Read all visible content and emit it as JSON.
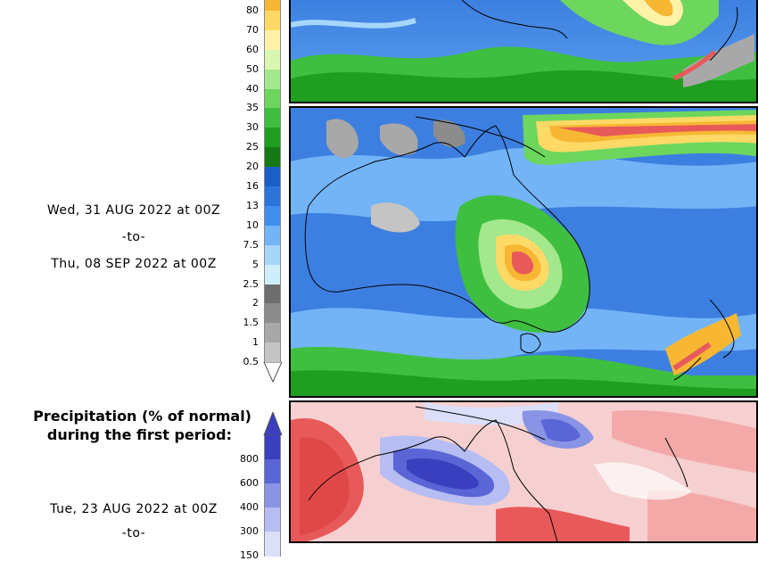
{
  "amount_scale": {
    "labels": [
      "80",
      "70",
      "60",
      "50",
      "40",
      "35",
      "30",
      "25",
      "20",
      "16",
      "13",
      "10",
      "7.5",
      "5",
      "2.5",
      "2",
      "1.5",
      "1",
      "0.5"
    ],
    "colors": [
      "#f7b733",
      "#ffd966",
      "#fff2a8",
      "#d9f7b0",
      "#a3e88c",
      "#6cd65d",
      "#3fbf3f",
      "#1f9e1f",
      "#147a14",
      "#1a5fc6",
      "#2b74d8",
      "#3f8ef0",
      "#73b4f7",
      "#a6d6fb",
      "#cdeefc",
      "#6e6e6e",
      "#8c8c8c",
      "#a8a8a8",
      "#c4c4c4"
    ]
  },
  "second_period": {
    "start": "Wed, 31 AUG 2022 at 00Z",
    "separator": "-to-",
    "end": "Thu, 08 SEP 2022 at 00Z"
  },
  "anomaly_section": {
    "heading_line1": "Precipitation (% of normal)",
    "heading_line2": "during the first period:",
    "scale_labels": [
      "800",
      "600",
      "400",
      "300",
      "150"
    ],
    "scale_colors": [
      "#3a3fbf",
      "#5a66d6",
      "#8a94e6",
      "#b6bdf2",
      "#dcdffa"
    ],
    "first_period_start": "Tue, 23 AUG 2022 at 00Z",
    "first_period_separator": "-to-"
  },
  "colors": {
    "ocean_blue": "#3d7fe0",
    "rain_green": "#2fa02f",
    "dry_red": "#e85a5a",
    "wet_blue": "#4a58d0"
  }
}
